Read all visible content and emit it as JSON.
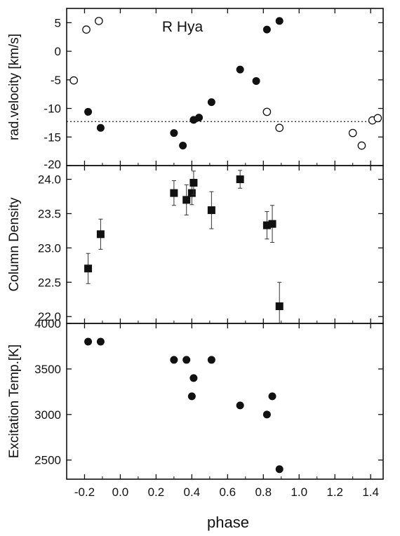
{
  "figure": {
    "xlabel": "phase",
    "x_tick_labels": [
      "-0.2",
      "0.0",
      "0.2",
      "0.4",
      "0.6",
      "0.8",
      "1.0",
      "1.2",
      "1.4"
    ]
  },
  "chart_data": [
    {
      "type": "scatter",
      "panel": "top",
      "annotation": "R Hya",
      "ylabel": "rad.velocity [km/s]",
      "xlim": [
        -0.3,
        1.47
      ],
      "ylim": [
        -20,
        7.5
      ],
      "x_ticks": [
        -0.2,
        0.0,
        0.2,
        0.4,
        0.6,
        0.8,
        1.0,
        1.2,
        1.4
      ],
      "y_ticks": [
        5,
        0,
        -5,
        -10,
        -15,
        -20
      ],
      "y_tick_labels": [
        "5",
        "0",
        "-5",
        "-10",
        "-15",
        "-20"
      ],
      "reference_line": {
        "y": -12.3,
        "style": "dotted"
      },
      "series": [
        {
          "marker": "filled-circle",
          "points": [
            {
              "x": -0.18,
              "y": -10.6
            },
            {
              "x": -0.11,
              "y": -13.4
            },
            {
              "x": 0.3,
              "y": -14.3
            },
            {
              "x": 0.35,
              "y": -16.5
            },
            {
              "x": 0.41,
              "y": -12.0
            },
            {
              "x": 0.44,
              "y": -11.6
            },
            {
              "x": 0.51,
              "y": -8.9
            },
            {
              "x": 0.67,
              "y": -3.2
            },
            {
              "x": 0.76,
              "y": -5.2
            },
            {
              "x": 0.82,
              "y": 3.8
            },
            {
              "x": 0.89,
              "y": 5.3
            }
          ]
        },
        {
          "marker": "open-circle",
          "points": [
            {
              "x": -0.26,
              "y": -5.1
            },
            {
              "x": -0.19,
              "y": 3.8
            },
            {
              "x": -0.12,
              "y": 5.3
            },
            {
              "x": 0.82,
              "y": -10.6
            },
            {
              "x": 0.89,
              "y": -13.4
            },
            {
              "x": 1.3,
              "y": -14.3
            },
            {
              "x": 1.35,
              "y": -16.5
            },
            {
              "x": 1.41,
              "y": -12.1
            },
            {
              "x": 1.44,
              "y": -11.7
            }
          ]
        }
      ]
    },
    {
      "type": "scatter",
      "panel": "middle",
      "ylabel": "Column Density",
      "xlim": [
        -0.3,
        1.47
      ],
      "ylim": [
        21.9,
        24.2
      ],
      "x_ticks": [
        -0.2,
        0.0,
        0.2,
        0.4,
        0.6,
        0.8,
        1.0,
        1.2,
        1.4
      ],
      "y_ticks": [
        22.0,
        22.5,
        23.0,
        23.5,
        24.0
      ],
      "y_tick_labels": [
        "22.0",
        "22.5",
        "23.0",
        "23.5",
        "24.0"
      ],
      "series": [
        {
          "marker": "filled-square",
          "points": [
            {
              "x": -0.18,
              "y": 22.7,
              "err": 0.22
            },
            {
              "x": -0.11,
              "y": 23.2,
              "err": 0.22
            },
            {
              "x": 0.3,
              "y": 23.8,
              "err": 0.18
            },
            {
              "x": 0.37,
              "y": 23.7,
              "err": 0.22
            },
            {
              "x": 0.4,
              "y": 23.8,
              "err": 0.17
            },
            {
              "x": 0.41,
              "y": 23.95,
              "err": 0.17
            },
            {
              "x": 0.51,
              "y": 23.55,
              "err": 0.27
            },
            {
              "x": 0.67,
              "y": 24.0,
              "err": 0.13
            },
            {
              "x": 0.82,
              "y": 23.33,
              "err": 0.2
            },
            {
              "x": 0.85,
              "y": 23.35,
              "err": 0.27
            },
            {
              "x": 0.89,
              "y": 22.15,
              "err": 0.35
            }
          ]
        }
      ]
    },
    {
      "type": "scatter",
      "panel": "bottom",
      "ylabel": "Excitation Temp.[K]",
      "xlim": [
        -0.3,
        1.47
      ],
      "ylim": [
        2290,
        4000
      ],
      "x_ticks": [
        -0.2,
        0.0,
        0.2,
        0.4,
        0.6,
        0.8,
        1.0,
        1.2,
        1.4
      ],
      "y_ticks": [
        2500,
        3000,
        3500,
        4000
      ],
      "y_tick_labels": [
        "2500",
        "3000",
        "3500",
        "4000"
      ],
      "series": [
        {
          "marker": "filled-circle",
          "points": [
            {
              "x": -0.18,
              "y": 3800
            },
            {
              "x": -0.11,
              "y": 3800
            },
            {
              "x": 0.3,
              "y": 3600
            },
            {
              "x": 0.37,
              "y": 3600
            },
            {
              "x": 0.4,
              "y": 3200
            },
            {
              "x": 0.41,
              "y": 3400
            },
            {
              "x": 0.51,
              "y": 3600
            },
            {
              "x": 0.67,
              "y": 3100
            },
            {
              "x": 0.82,
              "y": 3000
            },
            {
              "x": 0.85,
              "y": 3200
            },
            {
              "x": 0.89,
              "y": 2400
            }
          ]
        }
      ]
    }
  ]
}
